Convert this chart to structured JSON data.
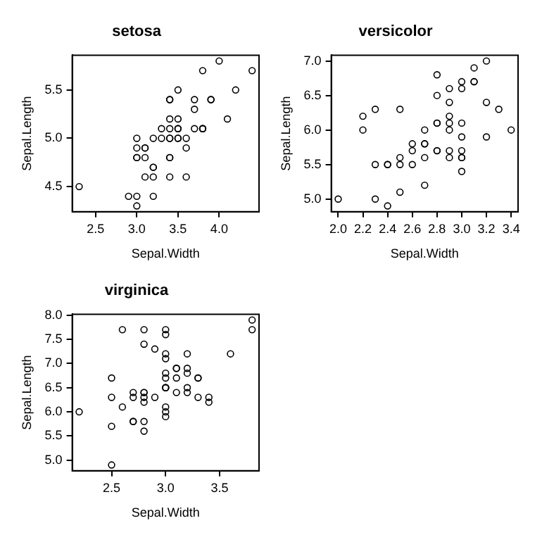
{
  "chart_data": [
    {
      "type": "scatter",
      "title": "setosa",
      "xlabel": "Sepal.Width",
      "ylabel": "Sepal.Length",
      "marker": "circle",
      "grid": false,
      "legend": false,
      "series": [
        {
          "color": "#000000",
          "x": [
            3.5,
            3.0,
            3.2,
            3.1,
            3.6,
            3.9,
            3.4,
            3.4,
            2.9,
            3.1,
            3.7,
            3.4,
            3.0,
            3.0,
            4.0,
            4.4,
            3.9,
            3.5,
            3.8,
            3.8,
            3.4,
            3.7,
            3.6,
            3.3,
            3.4,
            3.0,
            3.4,
            3.5,
            3.4,
            3.2,
            3.1,
            3.4,
            4.1,
            4.2,
            3.1,
            3.2,
            3.5,
            3.6,
            3.0,
            3.4,
            3.5,
            2.3,
            3.2,
            3.5,
            3.8,
            3.0,
            3.8,
            3.2,
            3.7,
            3.3
          ],
          "values": [
            5.1,
            4.9,
            4.7,
            4.6,
            5.0,
            5.4,
            4.6,
            5.0,
            4.4,
            4.9,
            5.4,
            4.8,
            4.8,
            4.3,
            5.8,
            5.7,
            5.4,
            5.1,
            5.7,
            5.1,
            5.4,
            5.1,
            4.6,
            5.1,
            4.8,
            5.0,
            5.0,
            5.2,
            5.2,
            4.7,
            4.8,
            5.4,
            5.2,
            5.5,
            4.9,
            5.0,
            5.5,
            4.9,
            4.4,
            5.1,
            5.0,
            4.5,
            4.4,
            5.0,
            5.1,
            4.8,
            5.1,
            4.6,
            5.3,
            5.0
          ]
        }
      ],
      "xlim": [
        2.216,
        4.484
      ],
      "xticks": [
        2.5,
        {
          "value": 3,
          "label": "3.0"
        },
        3.5,
        {
          "value": 4,
          "label": "4.0"
        }
      ],
      "ylim": [
        4.24,
        5.86
      ],
      "yticks": [
        4.5,
        {
          "value": 5,
          "label": "5.0"
        },
        5.5
      ]
    },
    {
      "type": "scatter",
      "title": "versicolor",
      "xlabel": "Sepal.Width",
      "ylabel": "Sepal.Length",
      "marker": "circle",
      "grid": false,
      "legend": false,
      "series": [
        {
          "color": "#000000",
          "x": [
            3.2,
            3.2,
            3.1,
            2.3,
            2.8,
            2.8,
            3.3,
            2.4,
            2.9,
            2.7,
            2.0,
            3.0,
            2.2,
            2.9,
            2.9,
            3.1,
            3.0,
            2.7,
            2.2,
            2.5,
            3.2,
            2.8,
            2.5,
            2.8,
            2.9,
            3.0,
            2.8,
            3.0,
            2.9,
            2.6,
            2.4,
            2.4,
            2.7,
            2.7,
            3.0,
            3.4,
            3.1,
            2.3,
            3.0,
            2.5,
            2.6,
            3.0,
            2.6,
            2.3,
            2.7,
            3.0,
            2.9,
            2.9,
            2.5,
            2.8
          ],
          "values": [
            7.0,
            6.4,
            6.9,
            5.5,
            6.5,
            5.7,
            6.3,
            4.9,
            6.6,
            5.2,
            5.0,
            5.9,
            6.0,
            6.1,
            5.6,
            6.7,
            5.6,
            5.8,
            6.2,
            5.6,
            5.9,
            6.1,
            6.3,
            6.1,
            6.4,
            6.6,
            6.8,
            6.7,
            6.0,
            5.7,
            5.5,
            5.5,
            5.8,
            6.0,
            5.4,
            6.0,
            6.7,
            6.3,
            5.6,
            5.5,
            5.5,
            6.1,
            5.8,
            5.0,
            5.6,
            5.7,
            5.7,
            6.2,
            5.1,
            5.7
          ]
        }
      ],
      "xlim": [
        1.944,
        3.456
      ],
      "xticks": [
        {
          "value": 2,
          "label": "2.0"
        },
        2.2,
        2.4,
        2.6,
        2.8,
        {
          "value": 3,
          "label": "3.0"
        },
        3.2,
        3.4
      ],
      "ylim": [
        4.816,
        7.084
      ],
      "yticks": [
        {
          "value": 5,
          "label": "5.0"
        },
        5.5,
        {
          "value": 6,
          "label": "6.0"
        },
        6.5,
        {
          "value": 7,
          "label": "7.0"
        }
      ]
    },
    {
      "type": "scatter",
      "title": "virginica",
      "xlabel": "Sepal.Width",
      "ylabel": "Sepal.Length",
      "marker": "circle",
      "grid": false,
      "legend": false,
      "series": [
        {
          "color": "#000000",
          "x": [
            3.3,
            2.7,
            3.0,
            2.9,
            3.0,
            3.0,
            2.5,
            2.9,
            2.5,
            3.6,
            3.2,
            2.7,
            3.0,
            2.5,
            2.8,
            3.2,
            3.0,
            3.8,
            2.6,
            2.2,
            3.2,
            2.8,
            2.8,
            2.7,
            3.3,
            3.2,
            2.8,
            3.0,
            2.8,
            3.0,
            2.8,
            3.8,
            2.8,
            2.8,
            2.6,
            3.0,
            3.4,
            3.1,
            3.0,
            3.1,
            3.1,
            3.1,
            2.7,
            3.2,
            3.3,
            3.0,
            2.5,
            3.0,
            3.4,
            3.0
          ],
          "values": [
            6.3,
            5.8,
            7.1,
            6.3,
            6.5,
            7.6,
            4.9,
            7.3,
            6.7,
            7.2,
            6.5,
            6.4,
            6.8,
            5.7,
            5.8,
            6.4,
            6.5,
            7.7,
            7.7,
            6.0,
            6.9,
            5.6,
            7.7,
            6.3,
            6.7,
            7.2,
            6.2,
            6.1,
            6.4,
            7.2,
            7.4,
            7.9,
            6.4,
            6.3,
            6.1,
            7.7,
            6.3,
            6.4,
            6.0,
            6.9,
            6.7,
            6.9,
            5.8,
            6.8,
            6.7,
            6.7,
            6.3,
            6.5,
            6.2,
            5.9
          ]
        }
      ],
      "xlim": [
        2.136,
        3.864
      ],
      "xticks": [
        2.5,
        {
          "value": 3,
          "label": "3.0"
        },
        3.5
      ],
      "ylim": [
        4.78,
        8.02
      ],
      "yticks": [
        {
          "value": 5,
          "label": "5.0"
        },
        5.5,
        {
          "value": 6,
          "label": "6.0"
        },
        6.5,
        {
          "value": 7,
          "label": "7.0"
        },
        7.5,
        {
          "value": 8,
          "label": "8.0"
        }
      ]
    }
  ]
}
